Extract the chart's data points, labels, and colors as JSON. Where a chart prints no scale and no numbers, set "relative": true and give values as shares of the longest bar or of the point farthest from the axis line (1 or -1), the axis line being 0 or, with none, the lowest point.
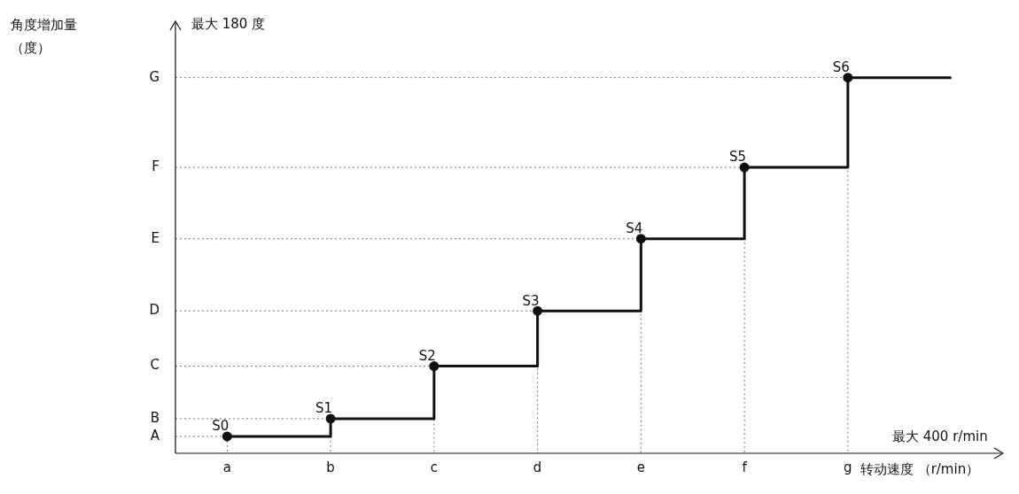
{
  "chart_data": {
    "type": "step",
    "relative": true,
    "xlabel": "转动速度 （r/min）",
    "categories": [
      "a",
      "b",
      "c",
      "d",
      "e",
      "f",
      "g",
      null
    ],
    "annotations": [
      "最大 180 度",
      "最大 400 r/min",
      "角度增加量（度）",
      "A",
      "B",
      "C",
      "D",
      "E",
      "F",
      "G",
      {
        "text": "S0",
        "x": "a",
        "y": 0.045
      },
      {
        "text": "S1",
        "x": "b",
        "y": 0.092
      },
      {
        "text": "S2",
        "x": "c",
        "y": 0.232
      },
      {
        "text": "S3",
        "x": "d",
        "y": 0.379
      },
      {
        "text": "S4",
        "x": "e",
        "y": 0.571
      },
      {
        "text": "S5",
        "x": "f",
        "y": 0.761
      },
      {
        "text": "S6",
        "x": "g",
        "y": 1
      }
    ],
    "series": [
      {
        "color": "#111111",
        "values": [
          0.045,
          0.092,
          0.232,
          0.379,
          0.571,
          0.761,
          1,
          1
        ]
      }
    ],
    "grid": true,
    "marker": "circle",
    "line_style": "solid"
  }
}
